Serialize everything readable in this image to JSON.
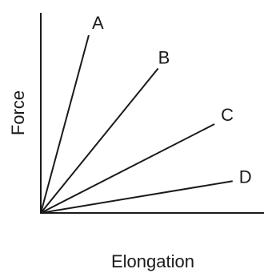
{
  "chart_data": {
    "type": "line",
    "xlabel": "Elongation",
    "ylabel": "Force",
    "grid": false,
    "xlim": [
      0,
      1
    ],
    "ylim": [
      0,
      1
    ],
    "series": [
      {
        "name": "A",
        "x": [
          0,
          0.222
        ],
        "y": [
          0,
          0.888
        ]
      },
      {
        "name": "B",
        "x": [
          0,
          0.543
        ],
        "y": [
          0,
          0.722
        ]
      },
      {
        "name": "C",
        "x": [
          0,
          0.804
        ],
        "y": [
          0,
          0.444
        ]
      },
      {
        "name": "D",
        "x": [
          0,
          0.888
        ],
        "y": [
          0,
          0.159
        ]
      }
    ]
  }
}
